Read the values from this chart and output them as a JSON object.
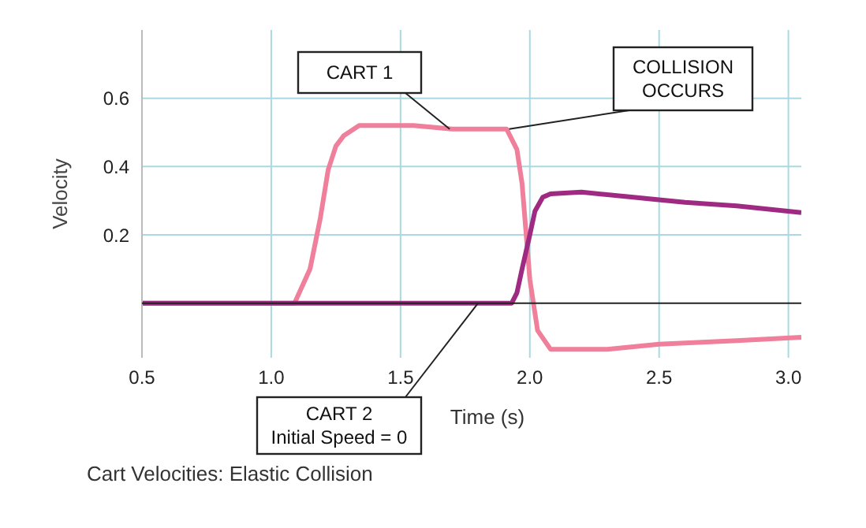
{
  "chart_data": {
    "type": "line",
    "xlabel": "Time (s)",
    "ylabel": "Velocity",
    "xlim": [
      0.5,
      3.05
    ],
    "xticks": [
      0.5,
      {
        "value": 1,
        "label": "1.0"
      },
      1.5,
      {
        "value": 2,
        "label": "2.0"
      },
      2.5,
      {
        "value": 3,
        "label": "3.0"
      }
    ],
    "ylim": [
      -0.16,
      0.8
    ],
    "yticks": [
      {
        "value": 0,
        "label": null
      },
      0.2,
      0.4,
      0.6
    ],
    "grid": true,
    "legend": false,
    "marker": "none",
    "line_style": "solid",
    "series": [
      {
        "color": "#ef7f9a",
        "x": [
          0.5,
          1.09,
          1.15,
          1.19,
          1.22,
          1.25,
          1.28,
          1.34,
          1.55,
          1.7,
          1.91,
          1.95,
          1.97,
          2.0,
          2.03,
          2.08,
          2.3,
          2.5,
          2.8,
          3.05
        ],
        "values": [
          0,
          0,
          0.1,
          0.25,
          0.39,
          0.46,
          0.49,
          0.52,
          0.52,
          0.51,
          0.51,
          0.45,
          0.35,
          0.07,
          -0.08,
          -0.135,
          -0.135,
          -0.12,
          -0.11,
          -0.1
        ]
      },
      {
        "color": "#9e2a82",
        "x": [
          0.5,
          1.93,
          1.95,
          1.97,
          2.0,
          2.02,
          2.05,
          2.08,
          2.2,
          2.4,
          2.6,
          2.8,
          3.05
        ],
        "values": [
          0,
          0,
          0.03,
          0.1,
          0.2,
          0.27,
          0.31,
          0.32,
          0.325,
          0.31,
          0.295,
          0.285,
          0.265
        ]
      }
    ],
    "annotations": [
      {
        "text": "CART 1",
        "x": 1.69,
        "y": 0.51
      },
      {
        "text": "COLLISION\nOCCURS",
        "x": 1.92,
        "y": 0.51
      },
      {
        "text": "CART 2\nInitial Speed = 0",
        "x": 1.8,
        "y": 0
      },
      "Cart Velocities: Elastic Collision"
    ]
  }
}
